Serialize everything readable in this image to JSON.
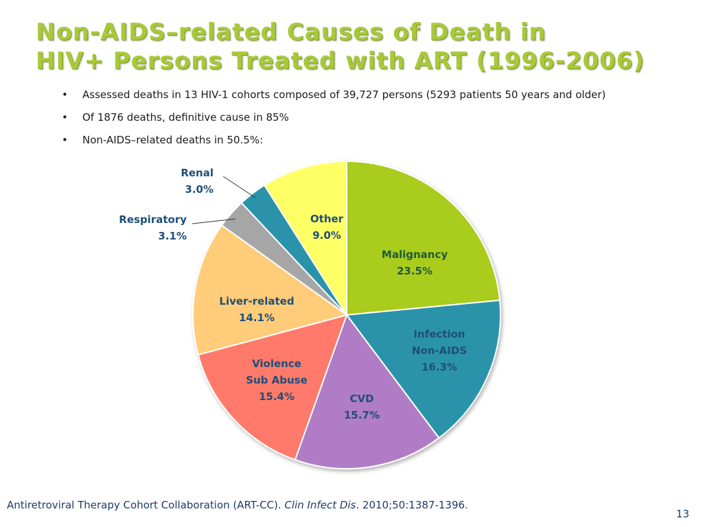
{
  "slide": {
    "title_line1": "Non-AIDS–related Causes of Death in",
    "title_line2": "HIV+ Persons Treated with ART (1996-2006)",
    "title_color": "#a9c93a",
    "bullets": [
      "Assessed  deaths in 13 HIV-1 cohorts composed of 39,727 persons (5293 patients 50 years and older)",
      "Of 1876 deaths, definitive cause in 85%",
      "Non-AIDS–related deaths in 50.5%:"
    ],
    "bullet_symbol": "•",
    "footer_text": "Antiretroviral Therapy Cohort Collaboration (ART-CC). ",
    "footer_journal": "Clin Infect Dis",
    "footer_citation": ". 2010;50:1387-1396.",
    "page_number": "13"
  },
  "chart_data": {
    "type": "pie",
    "start_angle_deg": 0,
    "direction": "clockwise",
    "slices": [
      {
        "name": "Malignancy",
        "label_lines": [
          "Malignancy",
          "23.5%"
        ],
        "value": 23.5,
        "color": "#aacc1a"
      },
      {
        "name": "Infection Non-AIDS",
        "label_lines": [
          "Infection",
          "Non-AIDS",
          "16.3%"
        ],
        "value": 16.3,
        "color": "#2a93aa"
      },
      {
        "name": "CVD",
        "label_lines": [
          "CVD",
          "15.7%"
        ],
        "value": 15.7,
        "color": "#b07cc6"
      },
      {
        "name": "Violence Sub Abuse",
        "label_lines": [
          "Violence",
          "Sub Abuse",
          "15.4%"
        ],
        "value": 15.4,
        "color": "#ff7a6a"
      },
      {
        "name": "Liver-related",
        "label_lines": [
          "Liver-related",
          "14.1%"
        ],
        "value": 14.1,
        "color": "#ffcc7a"
      },
      {
        "name": "Respiratory",
        "label_lines": [
          "Respiratory",
          "3.1%"
        ],
        "value": 3.1,
        "color": "#a6a6a6"
      },
      {
        "name": "Renal",
        "label_lines": [
          "Renal",
          "3.0%"
        ],
        "value": 3.0,
        "color": "#2a93aa"
      },
      {
        "name": "Other",
        "label_lines": [
          "Other",
          "9.0%"
        ],
        "value": 9.0,
        "color": "#ffff66"
      }
    ]
  }
}
